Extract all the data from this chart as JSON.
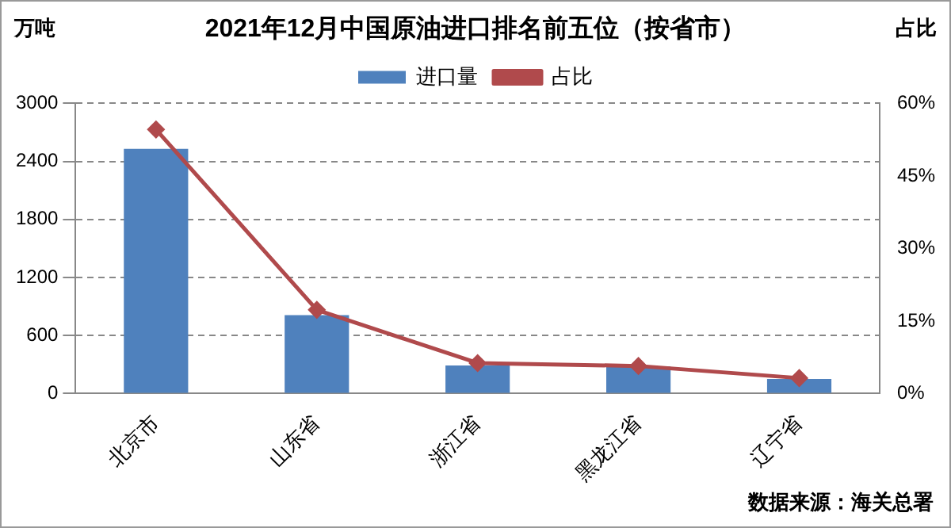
{
  "chart_data": {
    "type": "bar",
    "title": "2021年12月中国原油进口排名前五位（按省市）",
    "ylabel": "万吨",
    "y2label": "占比",
    "categories": [
      "北京市",
      "山东省",
      "浙江省",
      "黑龙江省",
      "辽宁省"
    ],
    "series": [
      {
        "name": "进口量",
        "color": "#4f81bd",
        "values": [
          2530,
          810,
          290,
          280,
          150
        ]
      },
      {
        "name": "占比",
        "type": "line",
        "axis": "y2",
        "color": "#b04a4c",
        "marker": "diamond",
        "values": [
          54.6,
          17.3,
          6.3,
          5.7,
          3.2
        ]
      }
    ],
    "ylim": [
      0,
      3000
    ],
    "yticks": [
      0,
      600,
      1200,
      1800,
      2400,
      3000
    ],
    "y2lim": [
      0,
      60
    ],
    "y2ticks": [
      {
        "value": 0,
        "label": "0%"
      },
      {
        "value": 15,
        "label": "15%"
      },
      {
        "value": 30,
        "label": "30%"
      },
      {
        "value": 45,
        "label": "45%"
      },
      {
        "value": 60,
        "label": "60%"
      }
    ],
    "grid": "y",
    "legend": "top",
    "annotations": [
      "数据来源：海关总署"
    ]
  }
}
